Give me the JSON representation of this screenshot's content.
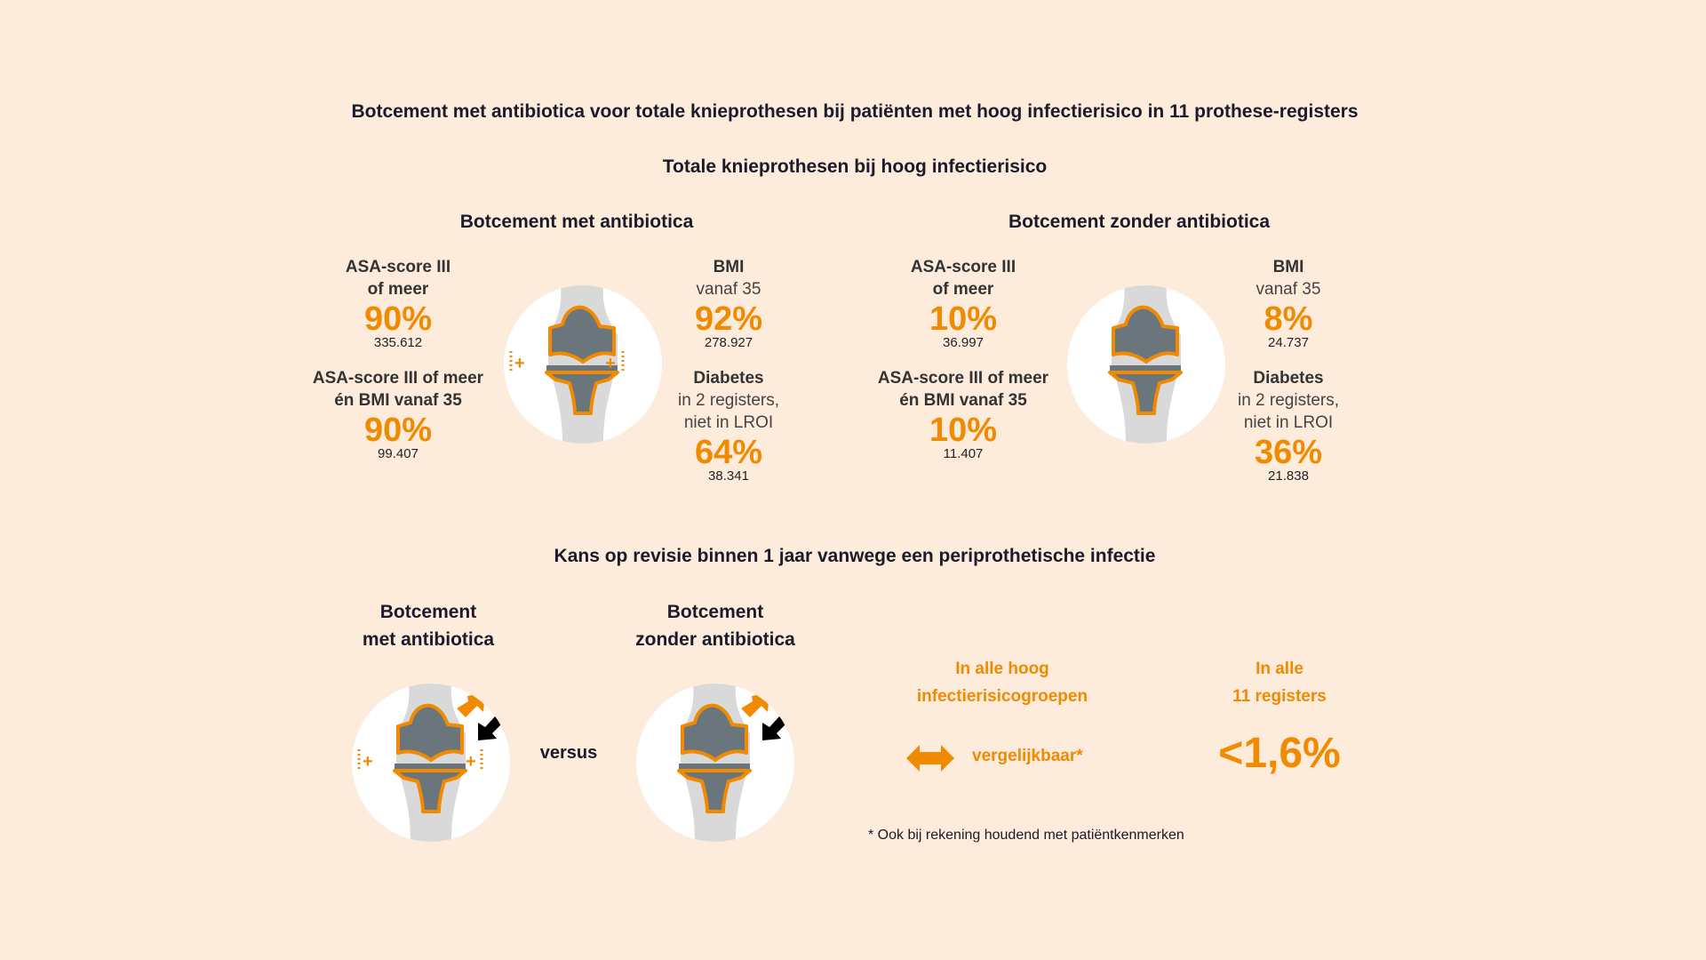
{
  "title": "Botcement met antibiotica voor totale knieprothesen bij patiënten met hoog infectierisico in 11 prothese-registers",
  "subtitle": "Totale knieprothesen bij hoog infectierisico",
  "groups": [
    {
      "heading": "Botcement met antibiotica",
      "asa": {
        "label1": "ASA-score III",
        "label2": "of meer",
        "pct": "90%",
        "n": "335.612"
      },
      "asa_bmi": {
        "label1": "ASA-score III of meer",
        "label2": "én BMI vanaf 35",
        "pct": "90%",
        "n": "99.407"
      },
      "bmi": {
        "label1": "BMI",
        "label2": "vanaf 35",
        "pct": "92%",
        "n": "278.927"
      },
      "diabetes": {
        "label1": "Diabetes",
        "label2": "in 2 registers,",
        "label3": "niet in LROI",
        "pct": "64%",
        "n": "38.341"
      }
    },
    {
      "heading": "Botcement zonder antibiotica",
      "asa": {
        "label1": "ASA-score III",
        "label2": "of meer",
        "pct": "10%",
        "n": "36.997"
      },
      "asa_bmi": {
        "label1": "ASA-score III of meer",
        "label2": "én BMI vanaf 35",
        "pct": "10%",
        "n": "11.407"
      },
      "bmi": {
        "label1": "BMI",
        "label2": "vanaf 35",
        "pct": "8%",
        "n": "24.737"
      },
      "diabetes": {
        "label1": "Diabetes",
        "label2": "in 2 registers,",
        "label3": "niet in LROI",
        "pct": "36%",
        "n": "21.838"
      }
    }
  ],
  "revision": {
    "heading": "Kans op revisie binnen 1 jaar vanwege een periprothetische infectie",
    "left_label1": "Botcement",
    "left_label2": "met antibiotica",
    "right_label1": "Botcement",
    "right_label2": "zonder antibiotica",
    "versus": "versus",
    "col1_label1": "In alle hoog",
    "col1_label2": "infectierisicogroepen",
    "col1_value": "vergelijkbaar*",
    "col2_label1": "In alle",
    "col2_label2": "11 registers",
    "col2_value": "<1,6%",
    "footnote": "* Ook bij rekening houdend met patiëntkenmerken"
  },
  "colors": {
    "accent": "#f08a00",
    "background": "#fdebdc",
    "implant": "#6b767c",
    "bone": "#d9d9d9"
  }
}
